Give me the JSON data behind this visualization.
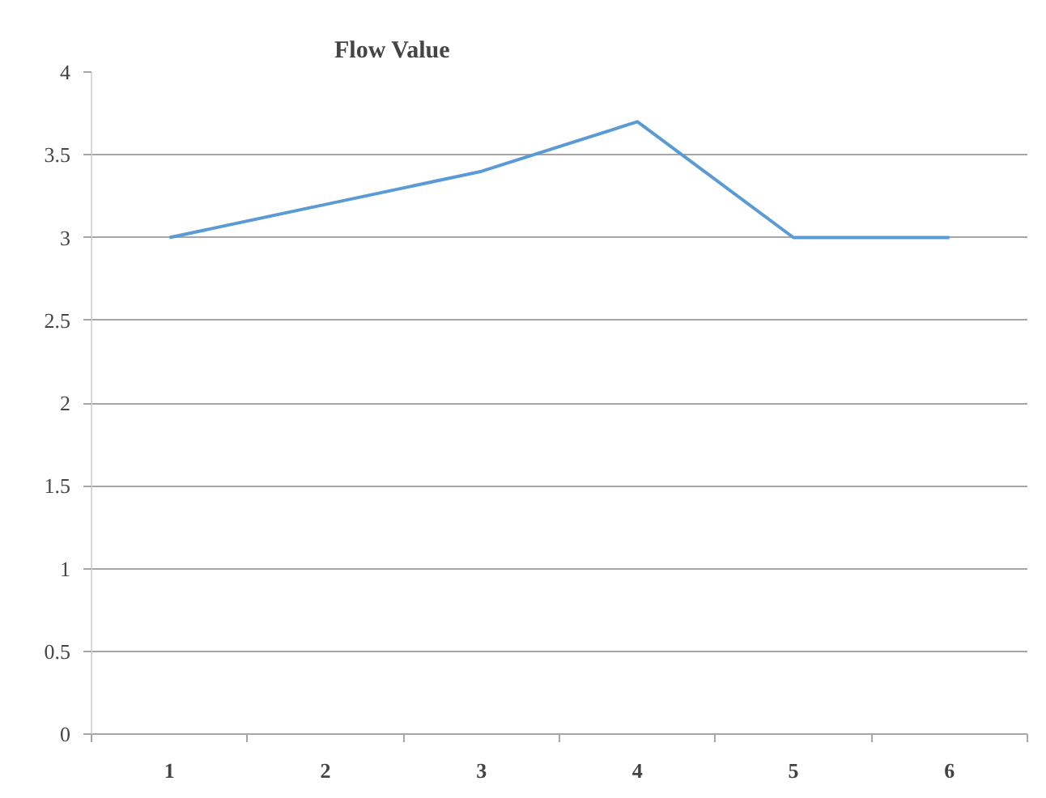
{
  "chart_data": {
    "type": "line",
    "title": "Flow Value",
    "categories": [
      "1",
      "2",
      "3",
      "4",
      "5",
      "6"
    ],
    "series": [
      {
        "color": "#5b9bd5",
        "values": [
          3.0,
          3.2,
          3.4,
          3.7,
          3.0,
          3.0
        ]
      }
    ],
    "ylim": [
      0,
      4
    ],
    "yticks": [
      0,
      0.5,
      1,
      1.5,
      2,
      2.5,
      3,
      3.5,
      4
    ],
    "grid": "y",
    "line_style": "solid"
  }
}
